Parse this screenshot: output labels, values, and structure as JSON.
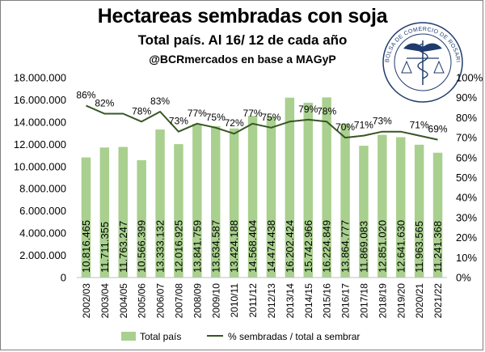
{
  "chart_data": {
    "type": "bar+line",
    "title": "Hectareas sembradas con soja",
    "subtitle": "Total país. Al 16/ 12 de cada año",
    "source": "@BCRmercados en base a MAGyP",
    "categories": [
      "2002/03",
      "2003/04",
      "2004/05",
      "2005/06",
      "2006/07",
      "2007/08",
      "2008/09",
      "2009/10",
      "2010/11",
      "2011/12",
      "2012/13",
      "2013/14",
      "2014/15",
      "2015/16",
      "2016/17",
      "2017/18",
      "2018/19",
      "2019/20",
      "2020/21",
      "2021/22"
    ],
    "series": [
      {
        "name": "Total país",
        "type": "bar",
        "axis": "left",
        "color": "#a9d08e",
        "values": [
          10816465,
          11711355,
          11763247,
          10566399,
          13333132,
          12016925,
          13841759,
          13634587,
          13424188,
          14568404,
          14474438,
          16202424,
          15742966,
          16224849,
          13864777,
          11869083,
          12851020,
          12641630,
          11963565,
          11241368
        ],
        "labels": [
          "10.816.465",
          "11.711.355",
          "11.763.247",
          "10.566.399",
          "13.333.132",
          "12.016.925",
          "13.841.759",
          "13.634.587",
          "13.424.188",
          "14.568.404",
          "14.474.438",
          "16.202.424",
          "15.742.966",
          "16.224.849",
          "13.864.777",
          "11.869.083",
          "12.851.020",
          "12.641.630",
          "11.963.565",
          "11.241.368"
        ]
      },
      {
        "name": "% sembradas / total a sembrar",
        "type": "line",
        "axis": "right",
        "color": "#375623",
        "values": [
          86,
          82,
          82,
          78,
          83,
          73,
          77,
          75,
          72,
          77,
          75,
          78,
          79,
          78,
          70,
          71,
          73,
          73,
          71,
          69
        ],
        "labels": [
          "86%",
          "82%",
          "",
          "78%",
          "83%",
          "73%",
          "77%",
          "75%",
          "72%",
          "77%",
          "75%",
          "",
          "79%",
          "78%",
          "70%",
          "71%",
          "73%",
          "",
          "71%",
          "69%"
        ]
      }
    ],
    "left_axis": {
      "min": 0,
      "max": 18000000,
      "step": 2000000,
      "tick_labels": [
        "0",
        "2.000.000",
        "4.000.000",
        "6.000.000",
        "8.000.000",
        "10.000.000",
        "12.000.000",
        "14.000.000",
        "16.000.000",
        "18.000.000"
      ]
    },
    "right_axis": {
      "min": 0,
      "max": 100,
      "step": 10,
      "tick_labels": [
        "0%",
        "10%",
        "20%",
        "30%",
        "40%",
        "50%",
        "60%",
        "70%",
        "80%",
        "90%",
        "100%"
      ]
    },
    "legend_position": "bottom",
    "grid": false
  },
  "seal": {
    "text": "BOLSA DE COMERCIO DE ROSARIO",
    "color": "#1f3b6e"
  }
}
